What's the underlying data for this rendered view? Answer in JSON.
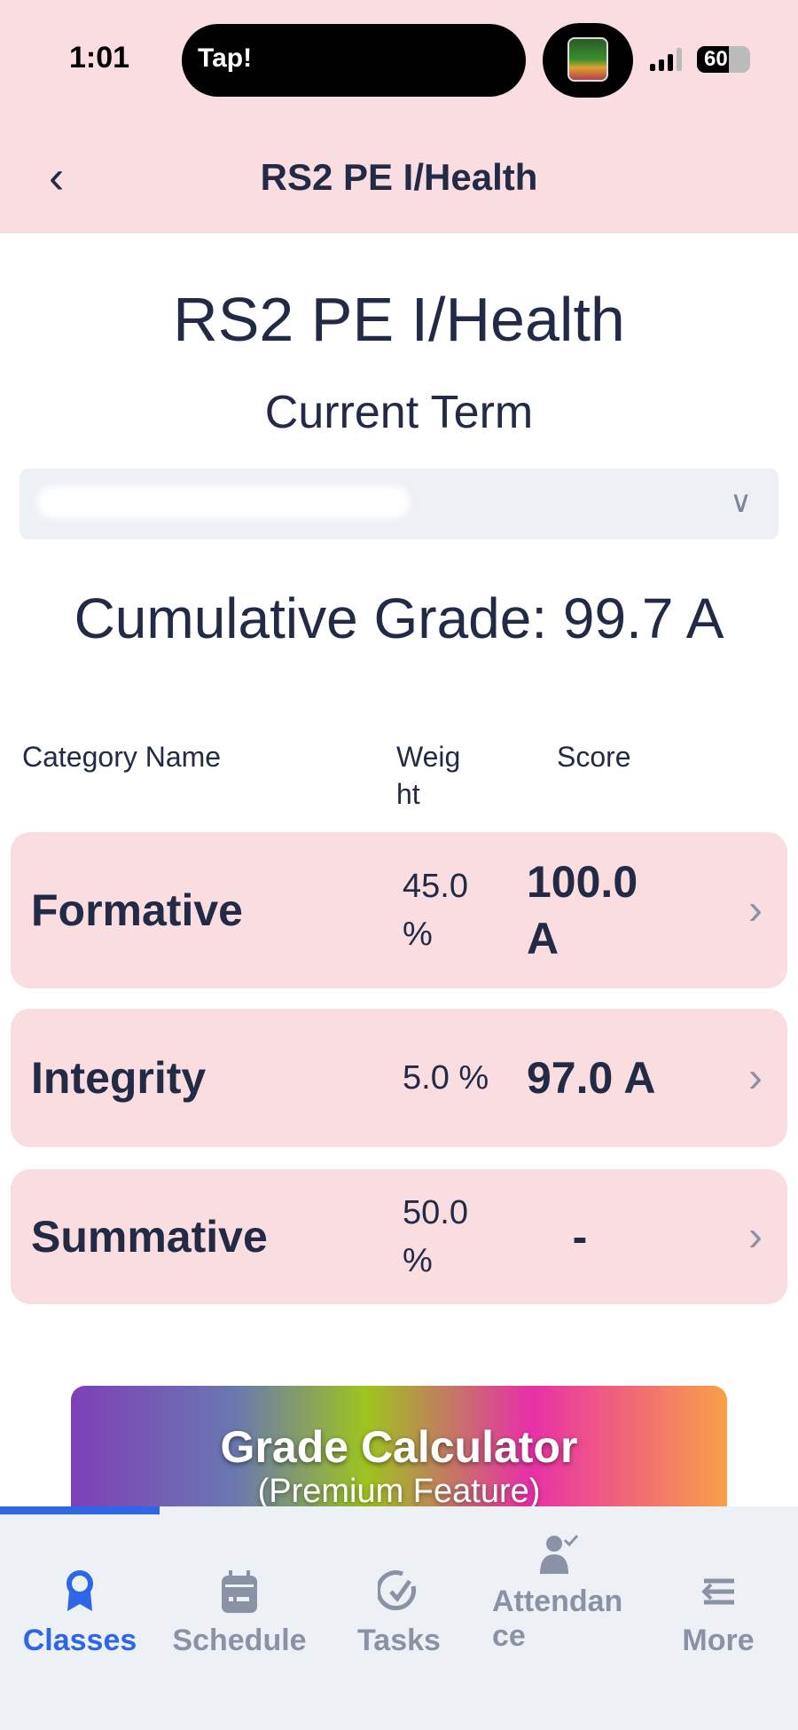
{
  "status_bar": {
    "time": "1:01",
    "activity": "Tap!",
    "battery": "60"
  },
  "nav": {
    "title": "RS2 PE I/Health"
  },
  "main": {
    "title": "RS2 PE I/Health",
    "term": "Current Term",
    "cumulative": "Cumulative Grade: 99.7 A",
    "headers": {
      "name": "Category Name",
      "weight": "Weig ht",
      "score": "Score"
    },
    "rows": [
      {
        "name": "Formative",
        "weight": "45.0 %",
        "score": "100.0 A"
      },
      {
        "name": "Integrity",
        "weight": "5.0 %",
        "score": "97.0 A"
      },
      {
        "name": "Summative",
        "weight": "50.0 %",
        "score": "-"
      }
    ],
    "banner": {
      "title": "Grade Calculator",
      "subtitle": "(Premium Feature)"
    }
  },
  "tabs": [
    {
      "label": "Classes",
      "icon": "award-icon",
      "active": true
    },
    {
      "label": "Schedule",
      "icon": "calendar-icon"
    },
    {
      "label": "Tasks",
      "icon": "check-circle-icon"
    },
    {
      "label": "Attendance",
      "icon": "user-check-icon"
    },
    {
      "label": "More",
      "icon": "menu-arrow-icon"
    }
  ],
  "colors": {
    "header": "#fadde1",
    "accent": "#2f66e8",
    "text": "#222a45",
    "inactive": "#8a93a6"
  }
}
